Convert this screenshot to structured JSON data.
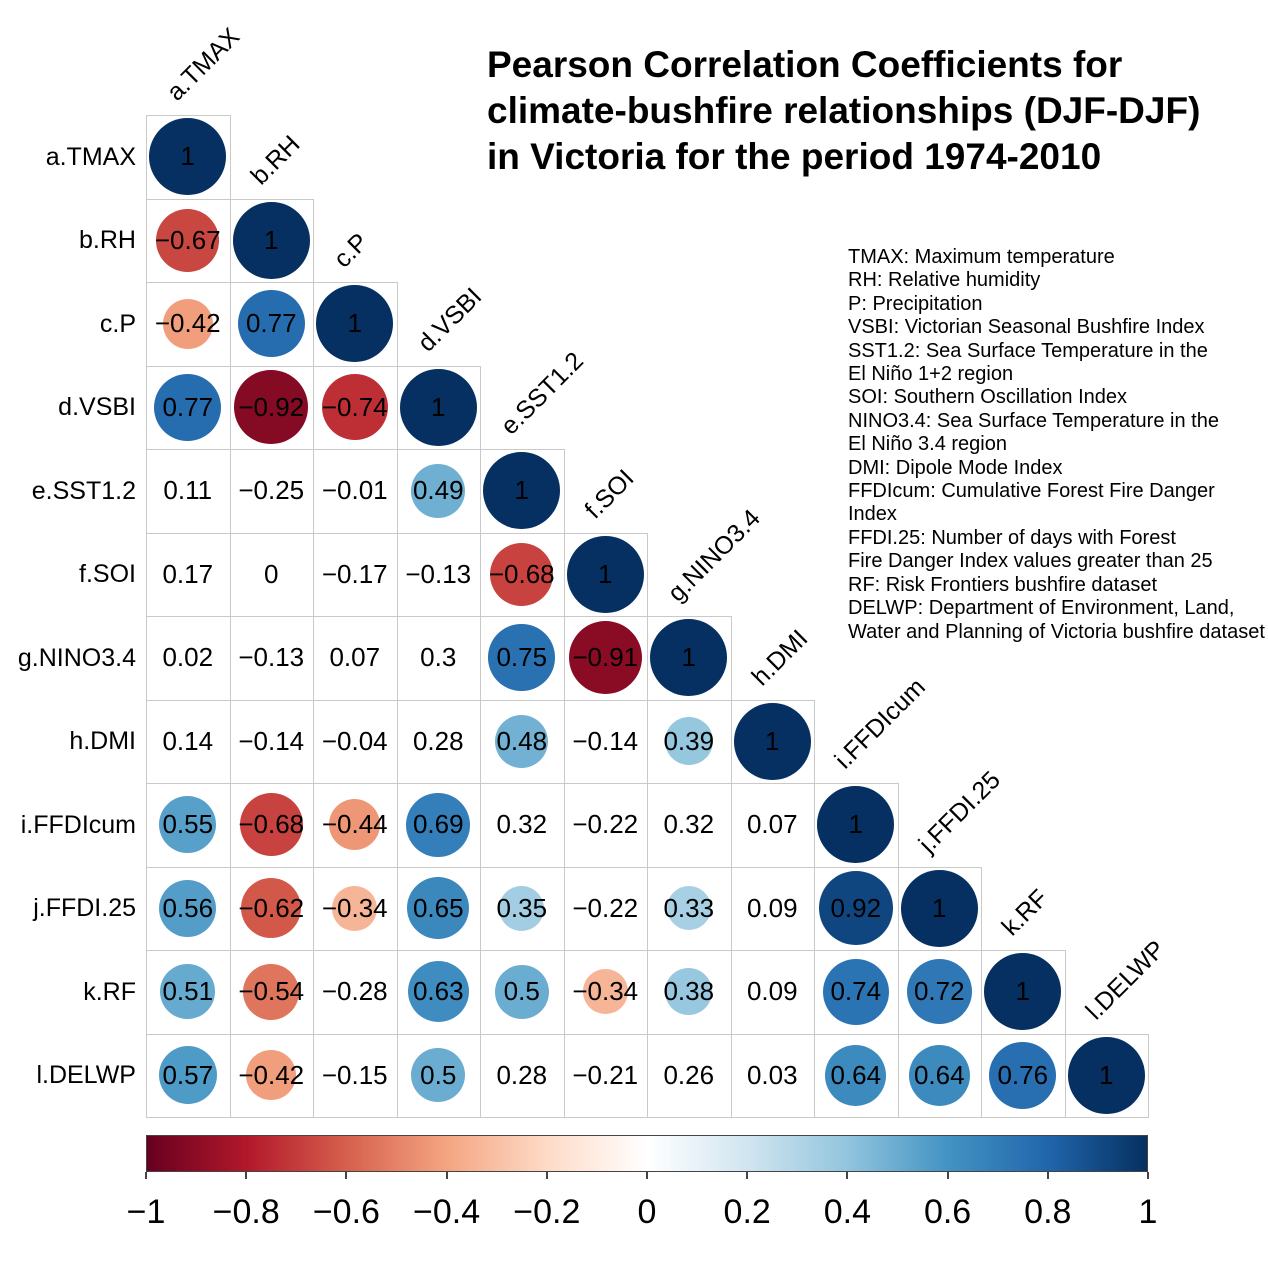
{
  "title": {
    "text": "Pearson Correlation Coefficients for\nclimate-bushfire relationships (DJF-DJF)\nin Victoria for the period 1974-2010"
  },
  "legend": {
    "text": "TMAX: Maximum temperature\nRH: Relative humidity\nP: Precipitation\nVSBI: Victorian Seasonal Bushfire Index\nSST1.2: Sea Surface Temperature in the\nEl Niño 1+2 region\nSOI: Southern Oscillation Index\nNINO3.4: Sea Surface Temperature in the\nEl Niño 3.4 region\nDMI: Dipole Mode Index\nFFDIcum: Cumulative Forest Fire Danger Index\nFFDI.25: Number of days with Forest\nFire Danger Index values greater than 25\nRF: Risk Frontiers bushfire dataset\nDELWP: Department of Environment, Land,\nWater and Planning of Victoria bushfire dataset"
  },
  "chart_data": {
    "type": "heatmap",
    "subtype": "lower-triangle-correlation-matrix",
    "title": "Pearson Correlation Coefficients for climate-bushfire relationships (DJF-DJF) in Victoria for the period 1974-2010",
    "variables": [
      "a.TMAX",
      "b.RH",
      "c.P",
      "d.VSBI",
      "e.SST1.2",
      "f.SOI",
      "g.NINO3.4",
      "h.DMI",
      "i.FFDIcum",
      "j.FFDI.25",
      "k.RF",
      "l.DELWP"
    ],
    "matrix_lower_triangle": [
      [
        1
      ],
      [
        -0.67,
        1
      ],
      [
        -0.42,
        0.77,
        1
      ],
      [
        0.77,
        -0.92,
        -0.74,
        1
      ],
      [
        0.11,
        -0.25,
        -0.01,
        0.49,
        1
      ],
      [
        0.17,
        0,
        -0.17,
        -0.13,
        -0.68,
        1
      ],
      [
        0.02,
        -0.13,
        0.07,
        0.3,
        0.75,
        -0.91,
        1
      ],
      [
        0.14,
        -0.14,
        -0.04,
        0.28,
        0.48,
        -0.14,
        0.39,
        1
      ],
      [
        0.55,
        -0.68,
        -0.44,
        0.69,
        0.32,
        -0.22,
        0.32,
        0.07,
        1
      ],
      [
        0.56,
        -0.62,
        -0.34,
        0.65,
        0.35,
        -0.22,
        0.33,
        0.09,
        0.92,
        1
      ],
      [
        0.51,
        -0.54,
        -0.28,
        0.63,
        0.5,
        -0.34,
        0.38,
        0.09,
        0.74,
        0.72,
        1
      ],
      [
        0.57,
        -0.42,
        -0.15,
        0.5,
        0.28,
        -0.21,
        0.26,
        0.03,
        0.64,
        0.64,
        0.76,
        1
      ]
    ],
    "circle_threshold_abs_r": 0.33,
    "circle_size_rule": "diameter = 0.92 * cell * sqrt(|r|), drawn only when |r| >= 0.33",
    "colormap_stops": [
      [
        -1,
        "#67001F"
      ],
      [
        -0.8,
        "#B2182B"
      ],
      [
        -0.6,
        "#D6604D"
      ],
      [
        -0.4,
        "#F4A582"
      ],
      [
        -0.2,
        "#FDDBC7"
      ],
      [
        0,
        "#FFFFFF"
      ],
      [
        0.2,
        "#D1E5F0"
      ],
      [
        0.4,
        "#92C5DE"
      ],
      [
        0.6,
        "#4393C3"
      ],
      [
        0.8,
        "#2166AC"
      ],
      [
        1,
        "#053061"
      ]
    ],
    "colorbar": {
      "min": -1,
      "max": 1,
      "ticks": [
        -1,
        -0.8,
        -0.6,
        -0.4,
        -0.2,
        0,
        0.2,
        0.4,
        0.6,
        0.8,
        1
      ]
    },
    "grid_color": "#c9c9c9",
    "number_color": "#000000",
    "background": "#ffffff"
  }
}
